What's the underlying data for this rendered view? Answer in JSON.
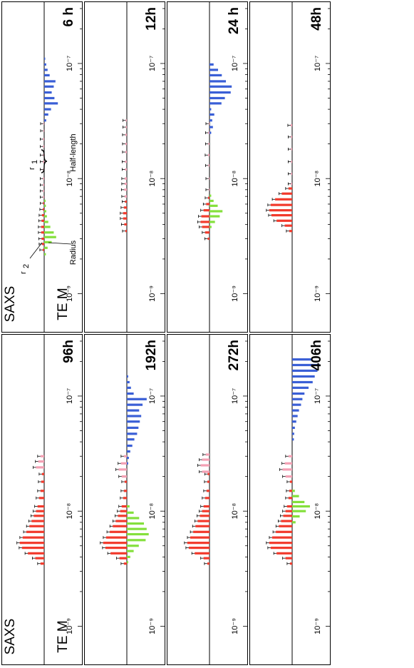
{
  "chart_data": {
    "type": "bar",
    "xaxis": {
      "scale": "log",
      "range": [
        5e-10,
        3e-07
      ],
      "tick_values": [
        1e-09,
        1e-08,
        1e-07
      ],
      "tick_labels": [
        "10⁻⁹",
        "10⁻⁸",
        "10⁻⁷"
      ]
    },
    "series_labels": {
      "upper": "SAXS",
      "lower": "TE M"
    },
    "colors": {
      "saxs": "#f23a2c",
      "saxs_pink": "#f4a0b4",
      "tem_radius": "#84e03c",
      "tem_halflength": "#3a5fd6",
      "errorbar": "#000000"
    },
    "annotations": {
      "r1": "r",
      "r1_sub": "1",
      "r2": "r",
      "r2_sub": "2",
      "radius": "Radius",
      "halflength": "Half-length"
    },
    "panels": [
      {
        "label": "6 h",
        "saxs_red": {
          "x": [
            2.4e-09,
            2.7e-09,
            3e-09,
            3.4e-09,
            3.8e-09,
            4.3e-09,
            4.8e-09,
            5.4e-09,
            6.1e-09
          ],
          "y": [
            0.04,
            0.06,
            0.07,
            0.08,
            0.08,
            0.07,
            0.06,
            0.04,
            0.03
          ]
        },
        "saxs_pink": {
          "x": [
            6.9e-09,
            7.8e-09,
            8.8e-09,
            1e-08,
            1.2e-08,
            1.4e-08,
            1.6e-08,
            1.9e-08,
            2.2e-08,
            2.6e-08,
            3e-08
          ],
          "y": [
            0.03,
            0.03,
            0.03,
            0.03,
            0.03,
            0.03,
            0.03,
            0.03,
            0.03,
            0.02,
            0.02
          ]
        },
        "tem_green": {
          "x": [
            2.2e-09,
            2.5e-09,
            2.8e-09,
            3.1e-09,
            3.4e-09,
            3.8e-09,
            4.2e-09,
            4.7e-09,
            5.2e-09,
            5.8e-09,
            6.4e-09
          ],
          "y": [
            0.05,
            0.1,
            0.22,
            0.35,
            0.28,
            0.18,
            0.12,
            0.08,
            0.06,
            0.05,
            0.04
          ]
        },
        "tem_blue": {
          "x": [
            3.2e-08,
            3.6e-08,
            4e-08,
            4.5e-08,
            5e-08,
            5.6e-08,
            6.3e-08,
            7e-08,
            7.9e-08,
            8.8e-08,
            9.8e-08,
            1.1e-07
          ],
          "y": [
            0.06,
            0.12,
            0.2,
            0.4,
            0.3,
            0.22,
            0.28,
            0.33,
            0.16,
            0.1,
            0.06,
            0.03
          ]
        }
      },
      {
        "label": "12h",
        "saxs_red": {
          "x": [
            3.5e-09,
            4e-09,
            4.5e-09,
            5e-09,
            5.6e-09,
            6.3e-09
          ],
          "y": [
            0.04,
            0.07,
            0.1,
            0.1,
            0.08,
            0.05
          ]
        },
        "saxs_pink": {
          "x": [
            7e-09,
            8e-09,
            9e-09,
            1e-08,
            1.2e-08,
            1.4e-08,
            1.7e-08,
            2e-08,
            2.4e-08,
            2.8e-08,
            3.2e-08
          ],
          "y": [
            0.06,
            0.07,
            0.06,
            0.06,
            0.05,
            0.05,
            0.04,
            0.04,
            0.04,
            0.03,
            0.03
          ]
        },
        "tem_green": {
          "x": [],
          "y": []
        },
        "tem_blue": {
          "x": [],
          "y": []
        }
      },
      {
        "label": "24 h",
        "saxs_red": {
          "x": [
            3e-09,
            3.4e-09,
            3.8e-09,
            4.2e-09,
            4.7e-09,
            5.3e-09,
            6e-09,
            6.8e-09
          ],
          "y": [
            0.05,
            0.12,
            0.2,
            0.24,
            0.22,
            0.16,
            0.09,
            0.04
          ]
        },
        "saxs_pink": {
          "x": [
            8e-09,
            1e-08,
            1.3e-08,
            1.6e-08,
            2e-08,
            2.5e-08,
            3e-08
          ],
          "y": [
            0.02,
            0.02,
            0.03,
            0.04,
            0.03,
            0.03,
            0.02
          ]
        },
        "tem_green": {
          "x": [
            3.8e-09,
            4.2e-09,
            4.7e-09,
            5.2e-09,
            5.8e-09,
            6.4e-09,
            7.1e-09
          ],
          "y": [
            0.06,
            0.16,
            0.3,
            0.38,
            0.24,
            0.12,
            0.05
          ]
        },
        "tem_blue": {
          "x": [
            2.5e-08,
            2.8e-08,
            3.2e-08,
            3.6e-08,
            4e-08,
            4.5e-08,
            5e-08,
            5.6e-08,
            6.3e-08,
            7e-08,
            7.9e-08,
            8.8e-08,
            9.8e-08
          ],
          "y": [
            0.05,
            0.1,
            0.08,
            0.14,
            0.05,
            0.35,
            0.45,
            0.62,
            0.65,
            0.48,
            0.36,
            0.25,
            0.12
          ]
        }
      },
      {
        "label": "48h",
        "saxs_red": {
          "x": [
            3.5e-09,
            3.9e-09,
            4.3e-09,
            4.8e-09,
            5.3e-09,
            5.9e-09,
            6.6e-09,
            7.4e-09,
            8.2e-09
          ],
          "y": [
            0.08,
            0.2,
            0.42,
            0.56,
            0.62,
            0.58,
            0.46,
            0.28,
            0.1
          ]
        },
        "saxs_pink": {
          "x": [
            9e-09,
            1.1e-08,
            1.4e-08,
            1.8e-08,
            2.3e-08,
            2.9e-08
          ],
          "y": [
            0.03,
            0.03,
            0.03,
            0.03,
            0.03,
            0.04
          ]
        },
        "tem_green": {
          "x": [],
          "y": []
        },
        "tem_blue": {
          "x": [],
          "y": []
        }
      },
      {
        "label": "96h",
        "saxs_red": {
          "x": [
            3.5e-09,
            3.9e-09,
            4.3e-09,
            4.8e-09,
            5.3e-09,
            5.9e-09,
            6.6e-09,
            7.4e-09,
            8.2e-09,
            9.1e-09,
            1e-08,
            1.1e-08,
            1.3e-08,
            1.5e-08,
            1.8e-08,
            2.1e-08
          ],
          "y": [
            0.1,
            0.24,
            0.44,
            0.6,
            0.66,
            0.58,
            0.48,
            0.4,
            0.34,
            0.28,
            0.22,
            0.18,
            0.14,
            0.1,
            0.08,
            0.06
          ]
        },
        "saxs_pink": {
          "x": [
            2.4e-08,
            2.7e-08,
            3e-08
          ],
          "y": [
            0.22,
            0.16,
            0.1
          ]
        },
        "tem_green": {
          "x": [],
          "y": []
        },
        "tem_blue": {
          "x": [],
          "y": []
        }
      },
      {
        "label": "192h",
        "saxs_red": {
          "x": [
            3.5e-09,
            3.9e-09,
            4.3e-09,
            4.8e-09,
            5.3e-09,
            5.9e-09,
            6.6e-09,
            7.4e-09,
            8.2e-09,
            9.1e-09,
            1e-08,
            1.1e-08,
            1.3e-08,
            1.5e-08,
            1.8e-08
          ],
          "y": [
            0.08,
            0.2,
            0.44,
            0.58,
            0.64,
            0.56,
            0.46,
            0.38,
            0.3,
            0.24,
            0.18,
            0.14,
            0.1,
            0.08,
            0.06
          ]
        },
        "saxs_pink": {
          "x": [
            2e-08,
            2.3e-08,
            2.6e-08,
            3e-08
          ],
          "y": [
            0.14,
            0.22,
            0.16,
            0.08
          ]
        },
        "tem_green": {
          "x": [
            3.6e-09,
            4e-09,
            4.5e-09,
            5e-09,
            5.6e-09,
            6.3e-09,
            7e-09,
            7.8e-09,
            8.7e-09,
            9.7e-09,
            1.1e-08
          ],
          "y": [
            0.04,
            0.1,
            0.2,
            0.35,
            0.55,
            0.64,
            0.58,
            0.5,
            0.36,
            0.2,
            0.08
          ]
        },
        "tem_blue": {
          "x": [
            2.6e-08,
            2.9e-08,
            3.3e-08,
            3.7e-08,
            4.2e-08,
            4.7e-08,
            5.3e-08,
            6e-08,
            6.7e-08,
            7.5e-08,
            8.4e-08,
            9.4e-08,
            1.05e-07,
            1.18e-07,
            1.32e-07,
            1.48e-07
          ],
          "y": [
            0.04,
            0.06,
            0.1,
            0.16,
            0.22,
            0.3,
            0.34,
            0.38,
            0.42,
            0.36,
            0.46,
            0.58,
            0.2,
            0.12,
            0.08,
            0.04
          ]
        }
      },
      {
        "label": "272h",
        "saxs_red": {
          "x": [
            3.5e-09,
            3.9e-09,
            4.3e-09,
            4.8e-09,
            5.3e-09,
            5.9e-09,
            6.6e-09,
            7.4e-09,
            8.2e-09,
            9.1e-09,
            1e-08,
            1.1e-08,
            1.3e-08,
            1.5e-08,
            1.8e-08,
            2.1e-08
          ],
          "y": [
            0.06,
            0.16,
            0.4,
            0.56,
            0.6,
            0.52,
            0.44,
            0.38,
            0.32,
            0.26,
            0.2,
            0.16,
            0.12,
            0.08,
            0.06,
            0.05
          ]
        },
        "saxs_pink": {
          "x": [
            2.2e-08,
            2.5e-08,
            2.8e-08,
            3.1e-08
          ],
          "y": [
            0.2,
            0.24,
            0.2,
            0.1
          ]
        },
        "tem_green": {
          "x": [],
          "y": []
        },
        "tem_blue": {
          "x": [],
          "y": []
        }
      },
      {
        "label": "406h",
        "saxs_red": {
          "x": [
            3.5e-09,
            3.9e-09,
            4.3e-09,
            4.8e-09,
            5.3e-09,
            5.9e-09,
            6.6e-09,
            7.4e-09,
            8.2e-09,
            9.1e-09,
            1e-08,
            1.1e-08,
            1.3e-08,
            1.5e-08,
            1.8e-08
          ],
          "y": [
            0.06,
            0.18,
            0.42,
            0.58,
            0.62,
            0.54,
            0.44,
            0.36,
            0.3,
            0.24,
            0.18,
            0.14,
            0.1,
            0.08,
            0.06
          ]
        },
        "saxs_pink": {
          "x": [
            2e-08,
            2.3e-08,
            2.6e-08,
            3e-08
          ],
          "y": [
            0.18,
            0.26,
            0.2,
            0.1
          ]
        },
        "tem_green": {
          "x": [
            8e-09,
            9e-09,
            1e-08,
            1.1e-08,
            1.2e-08,
            1.35e-08,
            1.5e-08
          ],
          "y": [
            0.1,
            0.22,
            0.4,
            0.52,
            0.36,
            0.2,
            0.08
          ]
        },
        "tem_blue": {
          "x": [
            4.2e-08,
            4.7e-08,
            5.3e-08,
            6e-08,
            6.7e-08,
            7.5e-08,
            8.4e-08,
            9.4e-08,
            1.05e-07,
            1.18e-07,
            1.32e-07,
            1.48e-07,
            1.66e-07,
            1.86e-07,
            2.08e-07
          ],
          "y": [
            0.05,
            0.06,
            0.08,
            0.12,
            0.16,
            0.2,
            0.26,
            0.3,
            0.36,
            0.48,
            0.6,
            0.66,
            0.74,
            0.8,
            0.56
          ]
        }
      }
    ]
  }
}
